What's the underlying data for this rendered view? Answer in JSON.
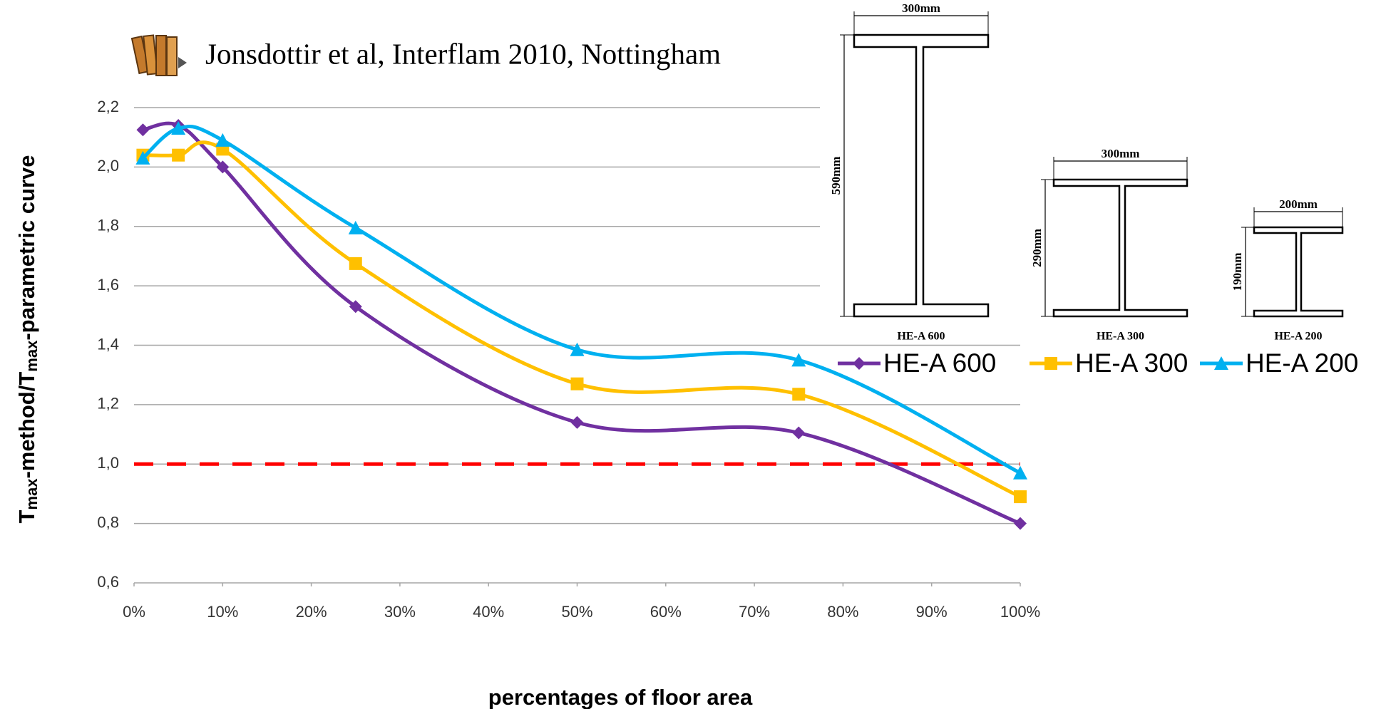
{
  "citation": "Jonsdottir et al, Interflam 2010, Nottingham",
  "sections": [
    {
      "name": "HE-A 600",
      "width_label": "300mm",
      "height_label": "590mm"
    },
    {
      "name": "HE-A 300",
      "width_label": "300mm",
      "height_label": "290mm"
    },
    {
      "name": "HE-A 200",
      "width_label": "200mm",
      "height_label": "190mm"
    }
  ],
  "chart_data": {
    "type": "line",
    "x_label": "percentages of floor area",
    "y_label": [
      "T",
      "max",
      "-method/T",
      "max",
      "-parametric curve"
    ],
    "x": [
      1,
      5,
      10,
      25,
      50,
      75,
      100
    ],
    "series": [
      {
        "name": "HE-A 600",
        "color": "#7030a0",
        "marker": "diamond",
        "values": [
          2.125,
          2.14,
          2.0,
          1.53,
          1.14,
          1.105,
          0.8
        ]
      },
      {
        "name": "HE-A 300",
        "color": "#ffc000",
        "marker": "square",
        "values": [
          2.04,
          2.04,
          2.06,
          1.675,
          1.27,
          1.235,
          0.89
        ]
      },
      {
        "name": "HE-A 200",
        "color": "#00b0f0",
        "marker": "triangle",
        "values": [
          2.03,
          2.13,
          2.09,
          1.795,
          1.385,
          1.35,
          0.97
        ]
      }
    ],
    "reference_lines": [
      {
        "value": 1,
        "color": "#ff0000",
        "style": "dashed"
      }
    ],
    "xlim": [
      0,
      100
    ],
    "xticks": [
      {
        "value": 0,
        "label": "0%"
      },
      {
        "value": 10,
        "label": "10%"
      },
      {
        "value": 20,
        "label": "20%"
      },
      {
        "value": 30,
        "label": "30%"
      },
      {
        "value": 40,
        "label": "40%"
      },
      {
        "value": 50,
        "label": "50%"
      },
      {
        "value": 60,
        "label": "60%"
      },
      {
        "value": 70,
        "label": "70%"
      },
      {
        "value": 80,
        "label": "80%"
      },
      {
        "value": 90,
        "label": "90%"
      },
      {
        "value": 100,
        "label": "100%"
      }
    ],
    "ylim": [
      0.6,
      2.2
    ],
    "yticks": [
      {
        "value": 0.6,
        "label": "0,6"
      },
      {
        "value": 0.8,
        "label": "0,8"
      },
      {
        "value": 1.0,
        "label": "1,0"
      },
      {
        "value": 1.2,
        "label": "1,2"
      },
      {
        "value": 1.4,
        "label": "1,4"
      },
      {
        "value": 1.6,
        "label": "1,6"
      },
      {
        "value": 1.8,
        "label": "1,8"
      },
      {
        "value": 2.0,
        "label": "2,0"
      },
      {
        "value": 2.2,
        "label": "2,2"
      }
    ],
    "grid": true
  }
}
